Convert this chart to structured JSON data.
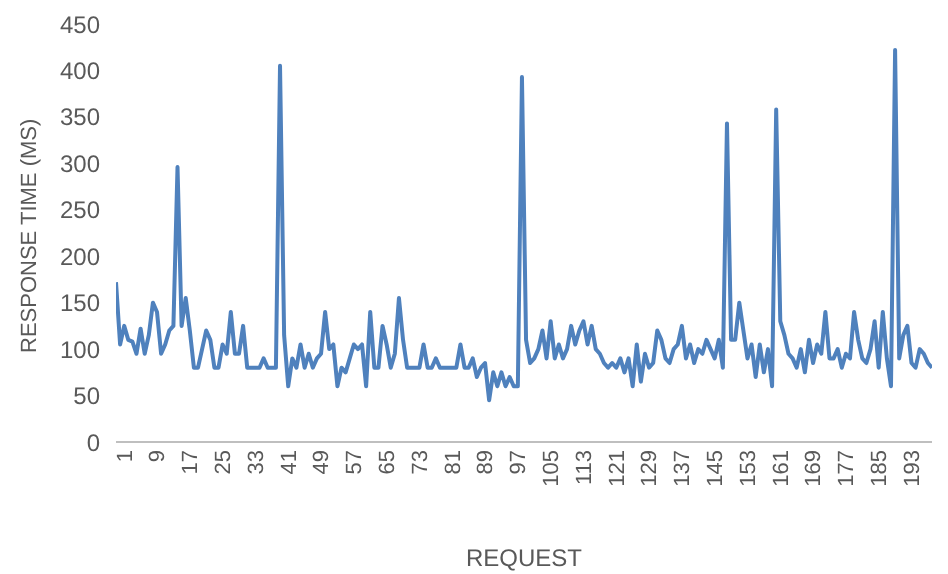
{
  "chart_data": {
    "type": "line",
    "xlabel": "REQUEST",
    "ylabel": "RESPONSE TIME (MS)",
    "x": [
      1,
      2,
      3,
      4,
      5,
      6,
      7,
      8,
      9,
      10,
      11,
      12,
      13,
      14,
      15,
      16,
      17,
      18,
      19,
      20,
      21,
      22,
      23,
      24,
      25,
      26,
      27,
      28,
      29,
      30,
      31,
      32,
      33,
      34,
      35,
      36,
      37,
      38,
      39,
      40,
      41,
      42,
      43,
      44,
      45,
      46,
      47,
      48,
      49,
      50,
      51,
      52,
      53,
      54,
      55,
      56,
      57,
      58,
      59,
      60,
      61,
      62,
      63,
      64,
      65,
      66,
      67,
      68,
      69,
      70,
      71,
      72,
      73,
      74,
      75,
      76,
      77,
      78,
      79,
      80,
      81,
      82,
      83,
      84,
      85,
      86,
      87,
      88,
      89,
      90,
      91,
      92,
      93,
      94,
      95,
      96,
      97,
      98,
      99,
      100,
      101,
      102,
      103,
      104,
      105,
      106,
      107,
      108,
      109,
      110,
      111,
      112,
      113,
      114,
      115,
      116,
      117,
      118,
      119,
      120,
      121,
      122,
      123,
      124,
      125,
      126,
      127,
      128,
      129,
      130,
      131,
      132,
      133,
      134,
      135,
      136,
      137,
      138,
      139,
      140,
      141,
      142,
      143,
      144,
      145,
      146,
      147,
      148,
      149,
      150,
      151,
      152,
      153,
      154,
      155,
      156,
      157,
      158,
      159,
      160,
      161,
      162,
      163,
      164,
      165,
      166,
      167,
      168,
      169,
      170,
      171,
      172,
      173,
      174,
      175,
      176,
      177,
      178,
      179,
      180,
      181,
      182,
      183,
      184,
      185,
      186,
      187,
      188,
      189,
      190,
      191,
      192,
      193,
      194,
      195,
      196,
      197,
      198,
      199,
      200
    ],
    "series": [
      {
        "color": "#4f81bd",
        "values": [
          172,
          105,
          125,
          110,
          108,
          95,
          122,
          95,
          115,
          150,
          140,
          95,
          105,
          120,
          125,
          296,
          125,
          155,
          120,
          80,
          80,
          100,
          120,
          110,
          80,
          80,
          105,
          95,
          140,
          95,
          95,
          125,
          80,
          80,
          80,
          80,
          90,
          80,
          80,
          80,
          405,
          115,
          60,
          90,
          80,
          105,
          80,
          95,
          80,
          90,
          95,
          140,
          100,
          105,
          60,
          80,
          75,
          90,
          105,
          100,
          105,
          60,
          140,
          80,
          80,
          125,
          105,
          80,
          95,
          155,
          110,
          80,
          80,
          80,
          80,
          105,
          80,
          80,
          90,
          80,
          80,
          80,
          80,
          80,
          105,
          80,
          80,
          90,
          70,
          80,
          85,
          45,
          75,
          60,
          75,
          60,
          70,
          60,
          60,
          393,
          110,
          85,
          90,
          100,
          120,
          90,
          130,
          90,
          105,
          90,
          100,
          125,
          105,
          120,
          130,
          105,
          125,
          100,
          95,
          85,
          80,
          85,
          80,
          90,
          75,
          90,
          60,
          105,
          65,
          95,
          80,
          85,
          120,
          110,
          90,
          85,
          100,
          105,
          125,
          90,
          105,
          85,
          100,
          95,
          110,
          100,
          90,
          110,
          80,
          343,
          110,
          110,
          150,
          120,
          90,
          105,
          70,
          105,
          75,
          100,
          60,
          358,
          130,
          115,
          95,
          90,
          80,
          100,
          75,
          110,
          85,
          105,
          95,
          140,
          90,
          90,
          100,
          80,
          95,
          90,
          140,
          110,
          90,
          85,
          100,
          130,
          80,
          140,
          90,
          60,
          422,
          90,
          115,
          125,
          85,
          80,
          100,
          95,
          85,
          80
        ]
      }
    ],
    "xlim": [
      1,
      200
    ],
    "xticks": [
      1,
      9,
      17,
      25,
      33,
      41,
      49,
      57,
      65,
      73,
      81,
      89,
      97,
      105,
      113,
      121,
      129,
      137,
      145,
      153,
      161,
      169,
      177,
      185,
      193
    ],
    "ylim": [
      0,
      450
    ],
    "yticks": [
      0,
      50,
      100,
      150,
      200,
      250,
      300,
      350,
      400,
      450
    ],
    "grid": false,
    "marker": "none",
    "legend": false
  }
}
